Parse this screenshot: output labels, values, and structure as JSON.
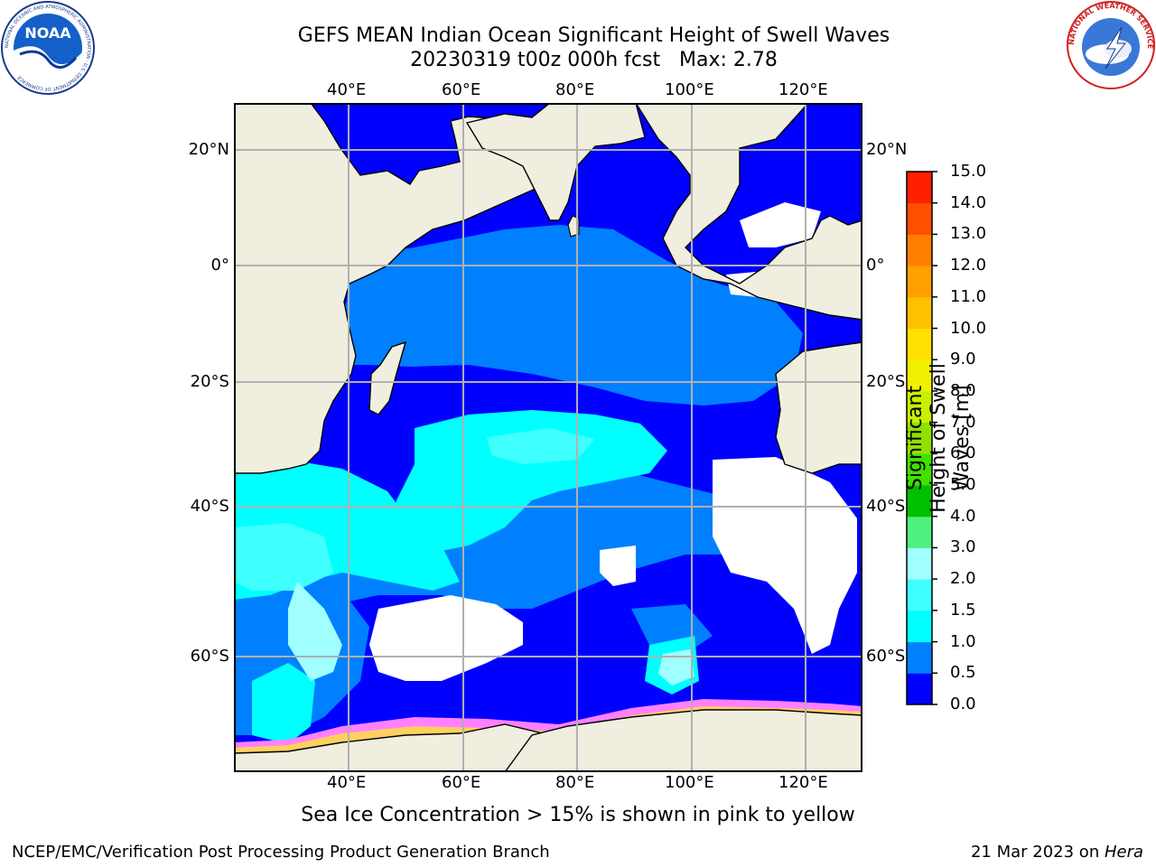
{
  "title_line1": "GEFS MEAN Indian Ocean Significant Height of Swell Waves",
  "title_line2": "20230319 t00z 000h fcst   Max: 2.78",
  "lon_labels": [
    "40°E",
    "60°E",
    "80°E",
    "100°E",
    "120°E"
  ],
  "lat_labels": [
    "20°N",
    "0°",
    "20°S",
    "40°S",
    "60°S"
  ],
  "colorbar": {
    "label": "Significant Height of Swell Waves [m]",
    "ticks": [
      "0.0",
      "0.5",
      "1.0",
      "1.5",
      "2.0",
      "3.0",
      "4.0",
      "5.0",
      "6.0",
      "7.0",
      "8.0",
      "9.0",
      "10.0",
      "11.0",
      "12.0",
      "13.0",
      "14.0",
      "15.0"
    ],
    "colors": [
      "#0000ff",
      "#0080ff",
      "#00ffff",
      "#40ffff",
      "#a0ffff",
      "#50f080",
      "#00c000",
      "#40e000",
      "#90e000",
      "#c8f000",
      "#f0f000",
      "#ffe000",
      "#ffc000",
      "#ffa000",
      "#ff8000",
      "#ff5000",
      "#ff2000"
    ]
  },
  "sea_ice_caption": "Sea Ice Concentration > 15% is shown in pink to yellow",
  "footer_left": "NCEP/EMC/Verification Post Processing Product Generation Branch",
  "footer_right_date": "21 Mar 2023 on ",
  "footer_right_machine": "Hera",
  "logo_left": "NOAA",
  "logo_left_ring": "NATIONAL OCEANIC AND ATMOSPHERIC ADMINISTRATION · U.S. DEPARTMENT OF COMMERCE",
  "logo_right_ring": "NATIONAL WEATHER SERVICE"
}
